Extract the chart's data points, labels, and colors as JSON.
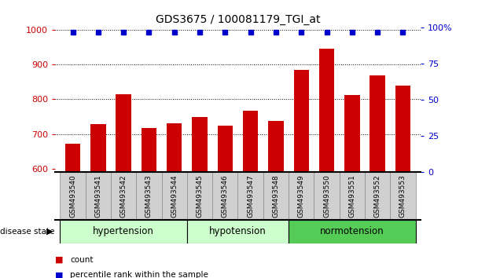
{
  "title": "GDS3675 / 100081179_TGI_at",
  "samples": [
    "GSM493540",
    "GSM493541",
    "GSM493542",
    "GSM493543",
    "GSM493544",
    "GSM493545",
    "GSM493546",
    "GSM493547",
    "GSM493548",
    "GSM493549",
    "GSM493550",
    "GSM493551",
    "GSM493552",
    "GSM493553"
  ],
  "counts": [
    672,
    728,
    815,
    718,
    730,
    748,
    724,
    768,
    738,
    885,
    945,
    812,
    868,
    838
  ],
  "percentiles": [
    97,
    97,
    97,
    97,
    97,
    97,
    97,
    97,
    97,
    97,
    97,
    97,
    97,
    97
  ],
  "group_configs": [
    {
      "label": "hypertension",
      "start": 0,
      "end": 5,
      "color": "#ccffcc"
    },
    {
      "label": "hypotension",
      "start": 5,
      "end": 9,
      "color": "#ccffcc"
    },
    {
      "label": "normotension",
      "start": 9,
      "end": 14,
      "color": "#55cc55"
    }
  ],
  "bar_color": "#cc0000",
  "dot_color": "#0000cc",
  "ylim_left": [
    590,
    1005
  ],
  "ylim_right": [
    0,
    100
  ],
  "yticks_left": [
    600,
    700,
    800,
    900,
    1000
  ],
  "yticks_right": [
    0,
    25,
    50,
    75,
    100
  ],
  "tick_label_color_left": "#cc0000",
  "tick_label_color_right": "#0000cc",
  "legend_count_color": "#cc0000",
  "legend_percentile_color": "#0000cc",
  "hyp_group_color": "#ccffcc",
  "norm_group_color": "#55cc55",
  "group_border_color": "#000000",
  "xtick_bg_color": "#d0d0d0",
  "grid_yticks": [
    700,
    800,
    900
  ]
}
